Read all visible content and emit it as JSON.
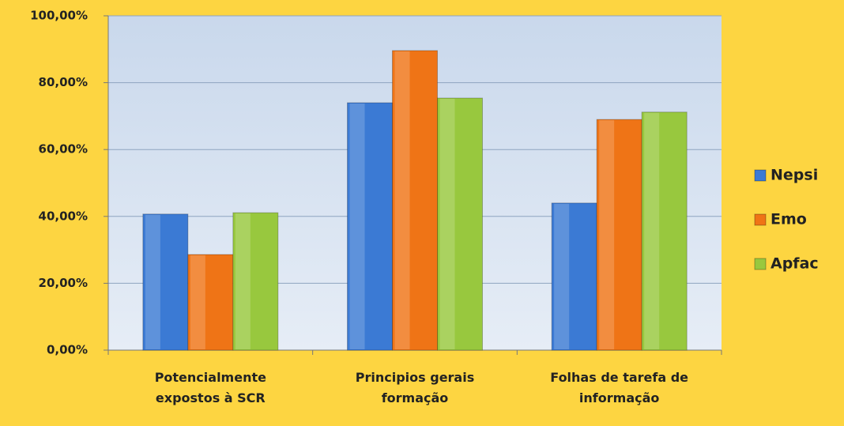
{
  "chart_data": {
    "type": "bar",
    "categories": [
      "Potencialmente expostos à SCR",
      "Principios gerais formação",
      "Folhas de tarefa de informação"
    ],
    "series": [
      {
        "name": "Nepsi",
        "color": "#3b7ad4",
        "values": [
          40.7,
          74.0,
          44.0
        ]
      },
      {
        "name": "Emo",
        "color": "#ef7416",
        "values": [
          28.6,
          89.6,
          69.0
        ]
      },
      {
        "name": "Apfac",
        "color": "#98c83e",
        "values": [
          41.1,
          75.4,
          71.2
        ]
      }
    ],
    "ylim": [
      0,
      100
    ],
    "yticks": [
      {
        "value": 0,
        "label": "0,00%"
      },
      {
        "value": 20,
        "label": "20,00%"
      },
      {
        "value": 40,
        "label": "40,00%"
      },
      {
        "value": 60,
        "label": "60,00%"
      },
      {
        "value": 80,
        "label": "80,00%"
      },
      {
        "value": 100,
        "label": "100,00%"
      }
    ],
    "grid": true,
    "legend": "right"
  }
}
